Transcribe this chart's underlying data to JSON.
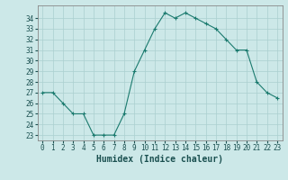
{
  "x": [
    0,
    1,
    2,
    3,
    4,
    5,
    6,
    7,
    8,
    9,
    10,
    11,
    12,
    13,
    14,
    15,
    16,
    17,
    18,
    19,
    20,
    21,
    22,
    23
  ],
  "y": [
    27,
    27,
    26,
    25,
    25,
    23,
    23,
    23,
    25,
    29,
    31,
    33,
    34.5,
    34,
    34.5,
    34,
    33.5,
    33,
    32,
    31,
    31,
    28,
    27,
    26.5
  ],
  "line_color": "#1a7a6e",
  "marker": "+",
  "marker_size": 3,
  "bg_color": "#cce8e8",
  "grid_color": "#aacfcf",
  "xlabel": "Humidex (Indice chaleur)",
  "ylim": [
    22.5,
    35.2
  ],
  "xlim": [
    -0.5,
    23.5
  ],
  "yticks": [
    23,
    24,
    25,
    26,
    27,
    28,
    29,
    30,
    31,
    32,
    33,
    34
  ],
  "xticks": [
    0,
    1,
    2,
    3,
    4,
    5,
    6,
    7,
    8,
    9,
    10,
    11,
    12,
    13,
    14,
    15,
    16,
    17,
    18,
    19,
    20,
    21,
    22,
    23
  ],
  "tick_fontsize": 5.5,
  "xlabel_fontsize": 7,
  "linewidth": 0.8,
  "markeredgewidth": 0.8
}
